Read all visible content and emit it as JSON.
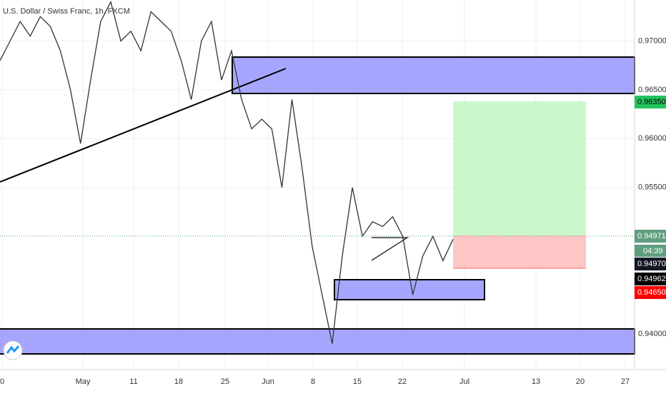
{
  "header": {
    "title": "U.S. Dollar / Swiss Franc, 1h, FXCM"
  },
  "price_axis": {
    "ylim": [
      0.93635,
      0.9742
    ],
    "ticks": [
      {
        "value": 0.97,
        "label": "0.97000"
      },
      {
        "value": 0.965,
        "label": "0.96500"
      },
      {
        "value": 0.96,
        "label": "0.96000"
      },
      {
        "value": 0.955,
        "label": "0.95500"
      },
      {
        "value": 0.94,
        "label": "0.94000"
      }
    ],
    "tags": [
      {
        "value": 0.9635,
        "label": "0.96350",
        "color": "#22c55e",
        "text_color": "#000000"
      },
      {
        "value": 0.94971,
        "label": "0.94971",
        "color": "#5f9e80",
        "text_color": "#ffffff"
      },
      {
        "value": 0.9497,
        "label": "0.94970",
        "color": "#131722",
        "text_color": "#ffffff"
      },
      {
        "value": 0.94962,
        "label": "0.94962",
        "color": "#000000",
        "text_color": "#ffffff"
      },
      {
        "value": 0.9465,
        "label": "0.94650",
        "color": "#ff0000",
        "text_color": "#ffffff"
      }
    ],
    "countdown": "04:39"
  },
  "time_axis": {
    "labels": [
      "0",
      "May",
      "11",
      "18",
      "25",
      "Jun",
      "8",
      "15",
      "22",
      "Jul",
      "13",
      "20",
      "27"
    ]
  },
  "price_trace": [
    0.968,
    0.97,
    0.972,
    0.9705,
    0.9725,
    0.9715,
    0.969,
    0.965,
    0.9595,
    0.966,
    0.972,
    0.974,
    0.97,
    0.971,
    0.969,
    0.973,
    0.972,
    0.971,
    0.968,
    0.964,
    0.97,
    0.972,
    0.966,
    0.969,
    0.964,
    0.961,
    0.962,
    0.961,
    0.955,
    0.964,
    0.957,
    0.949,
    0.944,
    0.939,
    0.948,
    0.955,
    0.95,
    0.9515,
    0.951,
    0.952,
    0.95,
    0.944,
    0.948,
    0.95,
    0.9475,
    0.9497
  ]
}
